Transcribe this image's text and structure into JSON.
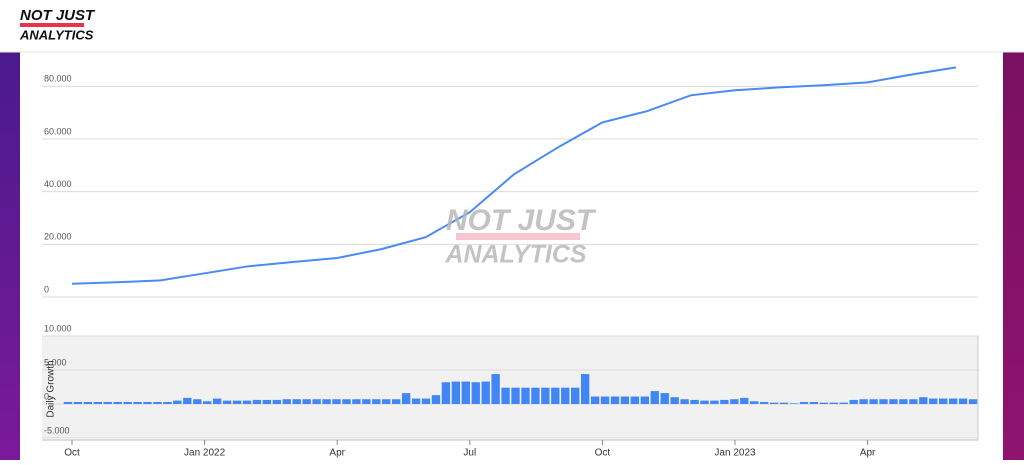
{
  "logo": {
    "top": "NOT JUST",
    "bottom": "ANALYTICS"
  },
  "watermark": {
    "top": "NOT JUST",
    "bottom": "ANALYTICS"
  },
  "chart_data": [
    {
      "type": "line",
      "color": "#4a8af4",
      "x": [
        "2021-10",
        "2021-11",
        "2021-12",
        "2022-01",
        "2022-02",
        "2022-03",
        "2022-04",
        "2022-05",
        "2022-06",
        "2022-07",
        "2022-08",
        "2022-09",
        "2022-10",
        "2022-11",
        "2022-12",
        "2023-01",
        "2023-02",
        "2023-03",
        "2023-04",
        "2023-05",
        "2023-06"
      ],
      "values": [
        5000,
        5600,
        6300,
        9000,
        11700,
        13300,
        14800,
        18200,
        22700,
        32200,
        46600,
        56900,
        66300,
        70500,
        76600,
        78500,
        79600,
        80400,
        81500,
        84500,
        87200
      ],
      "ylim": [
        0,
        90000
      ],
      "yticks": [
        0,
        {
          "value": 20000,
          "label": "20.000"
        },
        {
          "value": 40000,
          "label": "40.000"
        },
        {
          "value": 60000,
          "label": "60.000"
        },
        {
          "value": 80000,
          "label": "80.000"
        }
      ],
      "xticks": [
        {
          "value": "2021-10",
          "label": "Oct"
        },
        {
          "value": "2022-01",
          "label": "Jan 2022"
        },
        {
          "value": "2022-04",
          "label": "Apr"
        },
        {
          "value": "2022-07",
          "label": "Jul"
        },
        {
          "value": "2022-10",
          "label": "Oct"
        },
        {
          "value": "2023-01",
          "label": "Jan 2023"
        },
        {
          "value": "2023-04",
          "label": "Apr"
        }
      ],
      "grid": true
    },
    {
      "type": "bar",
      "color": "#4285f4",
      "y_label": "Daily Growth",
      "categories": [
        null,
        null,
        null,
        null,
        null,
        null,
        null,
        null,
        null,
        null,
        null,
        null,
        null,
        null,
        null,
        null,
        null,
        null,
        null,
        null,
        null,
        null,
        null,
        null,
        null,
        null,
        null,
        null,
        null,
        null,
        null,
        null,
        null,
        null,
        null,
        null,
        null,
        null,
        null,
        null,
        null,
        null,
        null,
        null,
        null,
        null,
        null,
        null,
        null,
        null,
        null,
        null,
        null,
        null,
        null,
        null,
        null,
        null,
        null,
        null,
        null,
        null,
        null,
        null,
        null,
        null,
        null,
        null,
        null,
        null,
        null,
        null,
        null,
        null,
        null,
        null,
        null,
        null,
        null,
        null,
        null,
        null,
        null,
        null,
        null,
        null,
        null,
        null,
        null,
        null,
        null,
        null
      ],
      "values": [
        300,
        300,
        300,
        300,
        300,
        300,
        300,
        300,
        300,
        300,
        300,
        500,
        900,
        700,
        400,
        800,
        500,
        500,
        500,
        600,
        600,
        600,
        700,
        700,
        700,
        700,
        700,
        700,
        700,
        700,
        700,
        700,
        700,
        700,
        1600,
        800,
        800,
        1300,
        3200,
        3300,
        3300,
        3200,
        3300,
        4400,
        2400,
        2400,
        2400,
        2400,
        2400,
        2400,
        2400,
        2400,
        4400,
        1100,
        1100,
        1100,
        1100,
        1100,
        1100,
        1900,
        1600,
        1000,
        700,
        600,
        500,
        500,
        600,
        700,
        900,
        400,
        300,
        200,
        200,
        100,
        300,
        300,
        200,
        200,
        200,
        600,
        700,
        700,
        700,
        700,
        700,
        700,
        1000,
        800,
        800,
        800,
        800,
        700
      ],
      "ylim": [
        -5000,
        10000
      ],
      "yticks": [
        {
          "value": -5000,
          "label": "-5.000"
        },
        0,
        {
          "value": 5000,
          "label": "5.000"
        },
        {
          "value": 10000,
          "label": "10.000"
        }
      ],
      "grid": true
    }
  ]
}
